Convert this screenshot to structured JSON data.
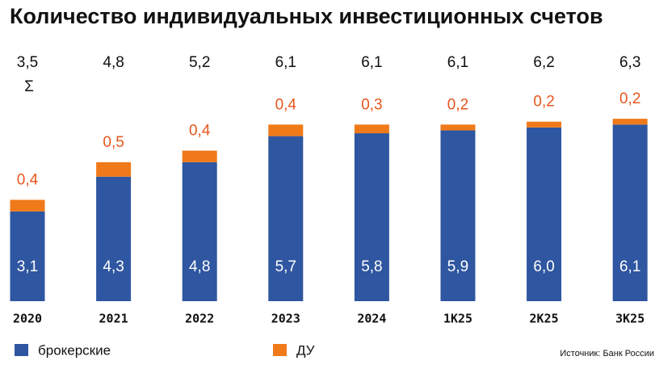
{
  "chart_data": {
    "type": "stacked_bar",
    "title": "Количество индивидуальных инвестиционных счетов",
    "categories": [
      "2020",
      "2021",
      "2022",
      "2023",
      "2024",
      "1К25",
      "2К25",
      "3К25"
    ],
    "series": [
      {
        "name": "брокерские",
        "color": "#2f56a0",
        "values": [
          3.1,
          4.3,
          4.8,
          5.7,
          5.8,
          5.9,
          6.0,
          6.1
        ],
        "value_labels": [
          "3,1",
          "4,3",
          "4,8",
          "5,7",
          "5,8",
          "5,9",
          "6,0",
          "6,1"
        ]
      },
      {
        "name": "ДУ",
        "color": "#f07a1a",
        "values": [
          0.4,
          0.5,
          0.4,
          0.4,
          0.3,
          0.2,
          0.2,
          0.2
        ],
        "value_labels": [
          "0,4",
          "0,5",
          "0,4",
          "0,4",
          "0,3",
          "0,2",
          "0,2",
          "0,2"
        ]
      }
    ],
    "totals": {
      "values": [
        3.5,
        4.8,
        5.2,
        6.1,
        6.1,
        6.1,
        6.2,
        6.3
      ],
      "value_labels": [
        "3,5",
        "4,8",
        "5,2",
        "6,1",
        "6,1",
        "6,1",
        "6,2",
        "6,3"
      ]
    },
    "sum_symbol": "Σ",
    "ylim": [
      0,
      7
    ],
    "source": "Источник: Банк России"
  }
}
